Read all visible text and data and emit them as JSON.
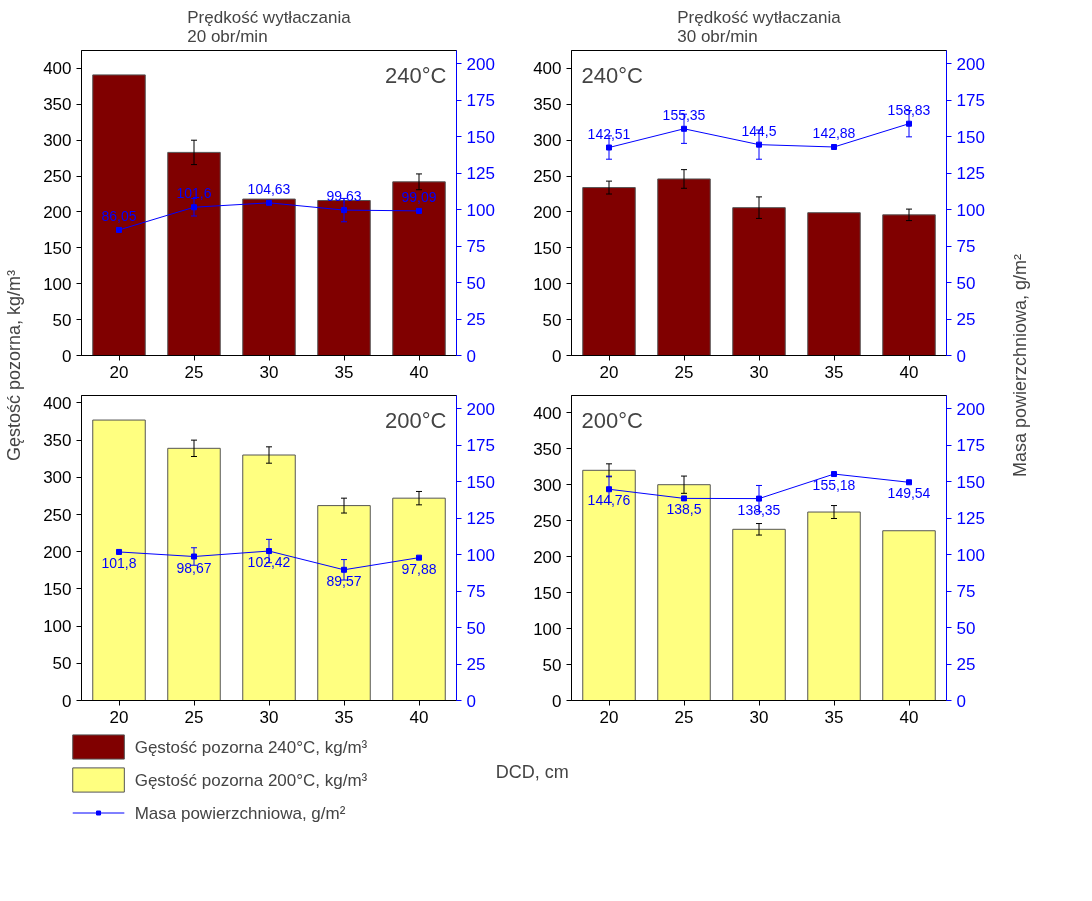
{
  "chart_data": [
    {
      "type": "bar",
      "title": "Prędkość wytłaczania\n20 obr/min",
      "ylabel": "Gęstość pozorna, kg/m³",
      "legend": "bottom",
      "categories": [
        "20",
        "25",
        "30",
        "35",
        "40"
      ],
      "ylim": [
        0,
        425
      ],
      "yticks": [
        0,
        50,
        100,
        150,
        200,
        250,
        300,
        350,
        400
      ],
      "y2lim": [
        0,
        209
      ],
      "y2ticks": [
        0,
        25,
        50,
        75,
        100,
        125,
        150,
        175,
        200
      ],
      "marker": "square",
      "annotations": [
        "240°C"
      ],
      "series": [
        {
          "name": "Gęstość pozorna 240°C, kg/m³",
          "color": "#800000",
          "values": [
            391,
            283,
            218,
            216,
            242
          ],
          "errors": [
            null,
            17,
            null,
            null,
            11
          ]
        },
        {
          "type": "line",
          "axis": "y2",
          "name": "Masa powierzchniowa, g/m²",
          "color": "#0000ff",
          "values": [
            86.05,
            101.6,
            104.63,
            99.63,
            99.09
          ],
          "errors": [
            null,
            6,
            null,
            8,
            null
          ],
          "value_labels": [
            "86,05",
            "101,6",
            "104,63",
            "99,63",
            "99,09"
          ]
        }
      ]
    },
    {
      "type": "bar",
      "title": "Prędkość wytłaczania\n30 obr/min",
      "y2label": "Masa powierzchniowa, g/m²",
      "categories": [
        "20",
        "25",
        "30",
        "35",
        "40"
      ],
      "ylim": [
        0,
        425
      ],
      "yticks": [
        0,
        50,
        100,
        150,
        200,
        250,
        300,
        350,
        400
      ],
      "y2lim": [
        0,
        209
      ],
      "y2ticks": [
        0,
        25,
        50,
        75,
        100,
        125,
        150,
        175,
        200
      ],
      "marker": "square",
      "annotations": [
        "240°C"
      ],
      "series": [
        {
          "color": "#800000",
          "values": [
            234,
            246,
            206,
            199,
            196
          ],
          "errors": [
            9,
            13,
            15,
            null,
            8
          ]
        },
        {
          "type": "line",
          "axis": "y2",
          "color": "#0000ff",
          "values": [
            142.51,
            155.35,
            144.5,
            142.88,
            158.83
          ],
          "errors": [
            8,
            10,
            10,
            null,
            9
          ],
          "value_labels": [
            "142,51",
            "155,35",
            "144,5",
            "142,88",
            "158,83"
          ]
        }
      ]
    },
    {
      "type": "bar",
      "xlabel": "DCD, cm",
      "legend": "bottom",
      "categories": [
        "20",
        "25",
        "30",
        "35",
        "40"
      ],
      "ylim": [
        0,
        410
      ],
      "yticks": [
        0,
        50,
        100,
        150,
        200,
        250,
        300,
        350,
        400
      ],
      "y2lim": [
        0,
        209
      ],
      "y2ticks": [
        0,
        25,
        50,
        75,
        100,
        125,
        150,
        175,
        200
      ],
      "marker": "square",
      "annotations": [
        "200°C"
      ],
      "series": [
        {
          "name": "Gęstość pozorna 200°C, kg/m³",
          "color": "#ffff80",
          "values": [
            377,
            339,
            330,
            262,
            272
          ],
          "errors": [
            null,
            11,
            11,
            10,
            9
          ]
        },
        {
          "type": "line",
          "axis": "y2",
          "color": "#0000ff",
          "values": [
            101.8,
            98.67,
            102.42,
            89.57,
            97.88
          ],
          "errors": [
            null,
            6,
            8,
            7,
            null
          ],
          "value_labels": [
            "101,8",
            "98,67",
            "102,42",
            "89,57",
            "97,88"
          ]
        }
      ]
    },
    {
      "type": "bar",
      "categories": [
        "20",
        "25",
        "30",
        "35",
        "40"
      ],
      "ylim": [
        0,
        424
      ],
      "yticks": [
        0,
        50,
        100,
        150,
        200,
        250,
        300,
        350,
        400
      ],
      "y2lim": [
        0,
        209
      ],
      "y2ticks": [
        0,
        25,
        50,
        75,
        100,
        125,
        150,
        175,
        200
      ],
      "marker": "square",
      "annotations": [
        "200°C"
      ],
      "series": [
        {
          "color": "#ffff80",
          "values": [
            320,
            300,
            238,
            262,
            236
          ],
          "errors": [
            9,
            12,
            8,
            9,
            null
          ]
        },
        {
          "type": "line",
          "axis": "y2",
          "color": "#0000ff",
          "values": [
            144.76,
            138.5,
            138.35,
            155.18,
            149.54
          ],
          "errors": [
            9,
            null,
            9,
            null,
            null
          ],
          "value_labels": [
            "144,76",
            "138,5",
            "138,35",
            "155,18",
            "149,54"
          ]
        }
      ]
    }
  ]
}
